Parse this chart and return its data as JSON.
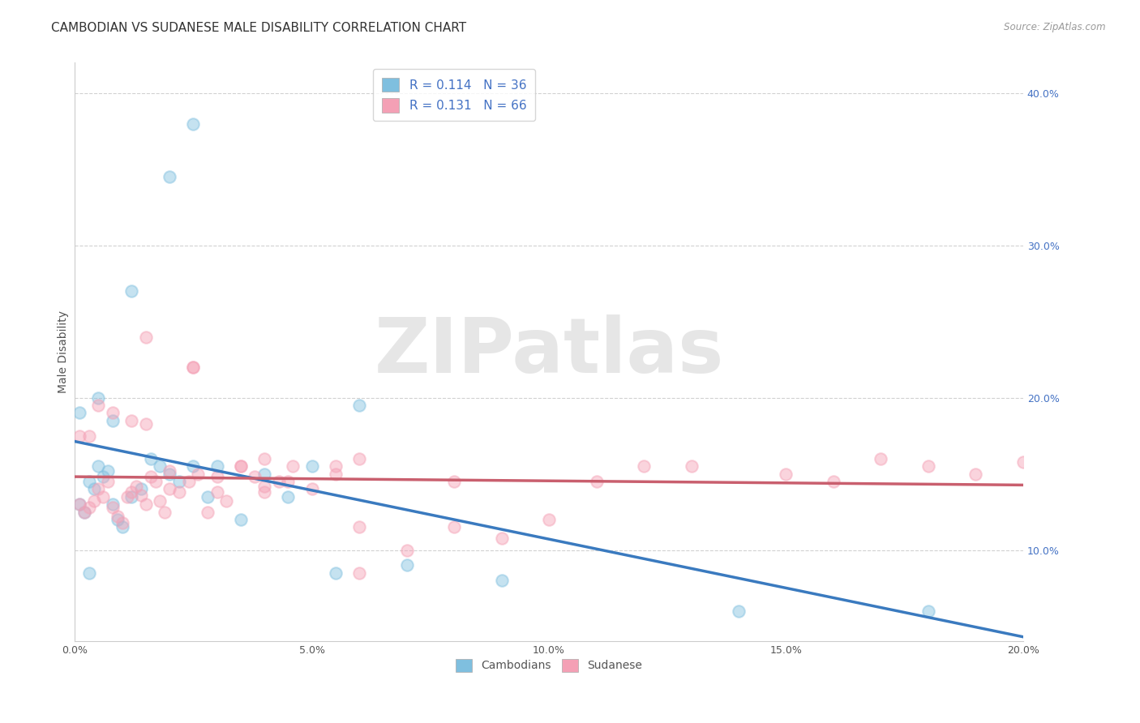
{
  "title": "CAMBODIAN VS SUDANESE MALE DISABILITY CORRELATION CHART",
  "source": "Source: ZipAtlas.com",
  "ylabel": "Male Disability",
  "xlim": [
    0.0,
    0.2
  ],
  "ylim": [
    0.04,
    0.42
  ],
  "blue_color": "#7fbfdf",
  "pink_color": "#f4a0b5",
  "blue_line_color": "#3a7abf",
  "pink_line_color": "#c95f6e",
  "legend_r_blue": "R = 0.114",
  "legend_n_blue": "N = 36",
  "legend_r_pink": "R = 0.131",
  "legend_n_pink": "N = 66",
  "legend_label_blue": "Cambodians",
  "legend_label_pink": "Sudanese",
  "cambodian_x": [
    0.001,
    0.002,
    0.003,
    0.004,
    0.005,
    0.006,
    0.007,
    0.008,
    0.009,
    0.01,
    0.012,
    0.014,
    0.016,
    0.018,
    0.02,
    0.022,
    0.025,
    0.028,
    0.03,
    0.035,
    0.04,
    0.045,
    0.05,
    0.055,
    0.06,
    0.07,
    0.001,
    0.003,
    0.005,
    0.008,
    0.012,
    0.02,
    0.025,
    0.09,
    0.14,
    0.18
  ],
  "cambodian_y": [
    0.13,
    0.125,
    0.145,
    0.14,
    0.155,
    0.148,
    0.152,
    0.13,
    0.12,
    0.115,
    0.135,
    0.14,
    0.16,
    0.155,
    0.15,
    0.145,
    0.155,
    0.135,
    0.155,
    0.12,
    0.15,
    0.135,
    0.155,
    0.085,
    0.195,
    0.09,
    0.19,
    0.085,
    0.2,
    0.185,
    0.27,
    0.345,
    0.38,
    0.08,
    0.06,
    0.06
  ],
  "sudanese_x": [
    0.001,
    0.002,
    0.003,
    0.004,
    0.005,
    0.006,
    0.007,
    0.008,
    0.009,
    0.01,
    0.011,
    0.012,
    0.013,
    0.014,
    0.015,
    0.016,
    0.017,
    0.018,
    0.019,
    0.02,
    0.022,
    0.024,
    0.026,
    0.028,
    0.03,
    0.032,
    0.035,
    0.038,
    0.04,
    0.043,
    0.046,
    0.05,
    0.055,
    0.06,
    0.001,
    0.003,
    0.005,
    0.008,
    0.012,
    0.015,
    0.02,
    0.025,
    0.03,
    0.035,
    0.04,
    0.045,
    0.055,
    0.06,
    0.07,
    0.08,
    0.09,
    0.1,
    0.11,
    0.13,
    0.15,
    0.16,
    0.17,
    0.18,
    0.19,
    0.2,
    0.015,
    0.025,
    0.04,
    0.06,
    0.08,
    0.12
  ],
  "sudanese_y": [
    0.13,
    0.125,
    0.128,
    0.132,
    0.14,
    0.135,
    0.145,
    0.128,
    0.122,
    0.118,
    0.135,
    0.138,
    0.142,
    0.136,
    0.13,
    0.148,
    0.145,
    0.132,
    0.125,
    0.14,
    0.138,
    0.145,
    0.15,
    0.125,
    0.138,
    0.132,
    0.155,
    0.148,
    0.142,
    0.145,
    0.155,
    0.14,
    0.15,
    0.115,
    0.175,
    0.175,
    0.195,
    0.19,
    0.185,
    0.183,
    0.152,
    0.22,
    0.148,
    0.155,
    0.138,
    0.145,
    0.155,
    0.16,
    0.1,
    0.115,
    0.108,
    0.12,
    0.145,
    0.155,
    0.15,
    0.145,
    0.16,
    0.155,
    0.15,
    0.158,
    0.24,
    0.22,
    0.16,
    0.085,
    0.145,
    0.155
  ],
  "background_color": "#ffffff",
  "grid_color": "#cccccc",
  "watermark": "ZIPatlas",
  "title_fontsize": 11,
  "axis_label_fontsize": 10,
  "tick_fontsize": 9
}
